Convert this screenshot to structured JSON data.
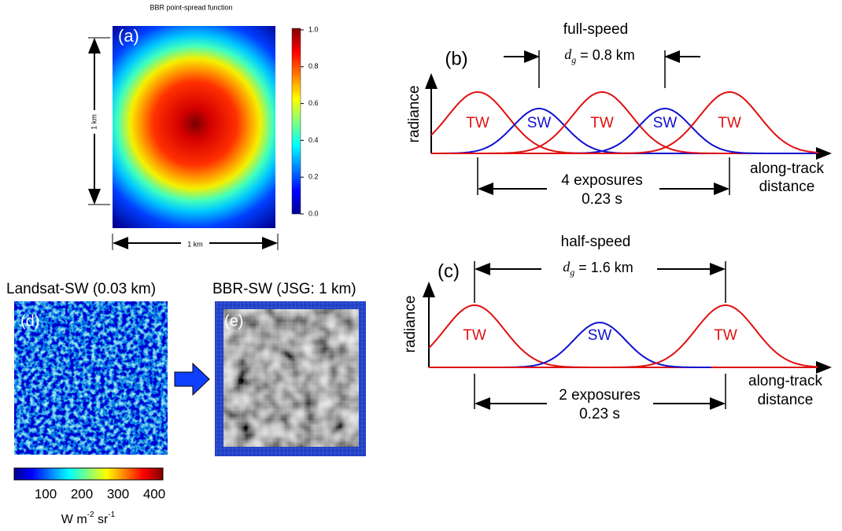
{
  "panel_a": {
    "title": "BBR point-spread function",
    "label": "(a)",
    "vertical_scale": "1 km",
    "horizontal_scale": "1 km",
    "colorbar_ticks": [
      "1.0",
      "0.8",
      "0.6",
      "0.4",
      "0.2",
      "0.0"
    ]
  },
  "panel_b": {
    "label": "(b)",
    "heading": "full-speed",
    "spacing": {
      "symbol": "d",
      "subscript": "g",
      "text": "= 0.8 km"
    },
    "y_axis": "radiance",
    "x_axis": [
      "along-track",
      "distance"
    ],
    "curve_labels": [
      "TW",
      "SW",
      "TW",
      "SW",
      "TW"
    ],
    "exposures": "4 exposures",
    "duration": "0.23 s"
  },
  "panel_c": {
    "label": "(c)",
    "heading": "half-speed",
    "spacing": {
      "symbol": "d",
      "subscript": "g",
      "text": "= 1.6 km"
    },
    "y_axis": "radiance",
    "x_axis": [
      "along-track",
      "distance"
    ],
    "curve_labels": [
      "TW",
      "SW",
      "TW"
    ],
    "exposures": "2 exposures",
    "duration": "0.23 s"
  },
  "panel_d": {
    "title": "Landsat-SW (0.03 km)",
    "label": "(d)",
    "colorbar_ticks": [
      "100",
      "200",
      "300",
      "400"
    ],
    "unit": {
      "base": "W m",
      "exp1": "-2",
      "mid": " sr",
      "exp2": "-1"
    }
  },
  "panel_e": {
    "title": "BBR-SW (JSG: 1 km)",
    "label": "(e)"
  }
}
